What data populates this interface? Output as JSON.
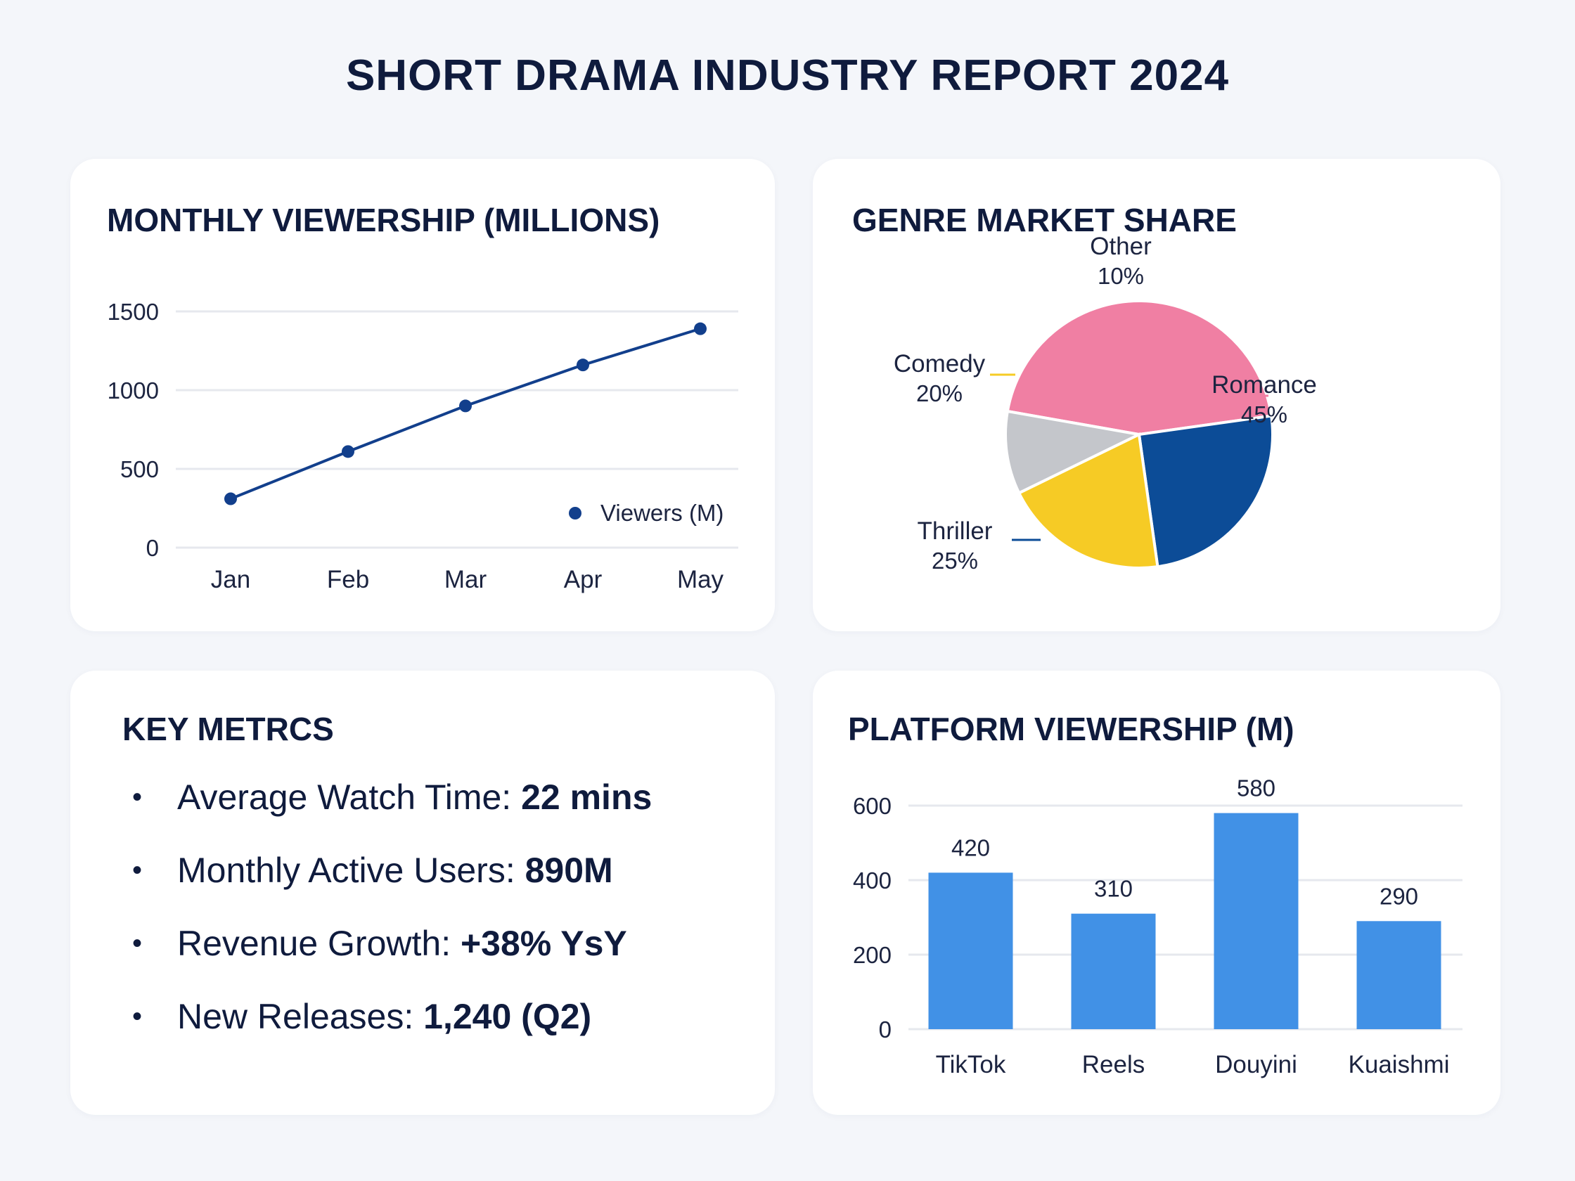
{
  "page": {
    "title": "SHORT DRAMA INDUSTRY REPORT 2024"
  },
  "colors": {
    "navy": "#123f8c",
    "romance": "#f07fa3",
    "thriller": "#0c4c97",
    "comedy": "#f6cb25",
    "other": "#c4c6cb",
    "bar": "#4191e6"
  },
  "key_metrics": {
    "title": "KEY METRCS",
    "items": [
      {
        "label": "Average Watch Time: ",
        "value": "22 mins"
      },
      {
        "label": "Monthly Active Users: ",
        "value": "890M"
      },
      {
        "label": "Revenue Growth: ",
        "value": "+38% YsY"
      },
      {
        "label": "New Releases: ",
        "value": "1,240 (Q2)"
      }
    ]
  },
  "chart_data": [
    {
      "type": "line",
      "title": "MONTHLY VIEWERSHIP (MILLIONS)",
      "categories": [
        "Jan",
        "Feb",
        "Mar",
        "Apr",
        "May"
      ],
      "series": [
        {
          "name": "Viewers (M)",
          "values": [
            310,
            610,
            900,
            1160,
            1390
          ]
        }
      ],
      "yticks": [
        0,
        500,
        1000,
        1500
      ],
      "ylim": [
        0,
        1500
      ],
      "grid": true,
      "legend": "bottom-right"
    },
    {
      "type": "pie",
      "title": "GENRE MARKET SHARE",
      "slices": [
        {
          "label": "Romance",
          "value": 45,
          "display": "45%"
        },
        {
          "label": "Thriller",
          "value": 25,
          "display": "25%"
        },
        {
          "label": "Comedy",
          "value": 20,
          "display": "20%"
        },
        {
          "label": "Other",
          "value": 10,
          "display": "10%"
        }
      ]
    },
    {
      "type": "bar",
      "title": "PLATFORM VIEWERSHIP (M)",
      "categories": [
        "TikTok",
        "Reels",
        "Douyini",
        "Kuaishmi"
      ],
      "values": [
        420,
        310,
        580,
        290
      ],
      "value_labels": [
        "420",
        "310",
        "580",
        "290"
      ],
      "yticks": [
        0,
        200,
        400,
        600
      ],
      "ylim": [
        0,
        600
      ],
      "grid": true
    }
  ]
}
